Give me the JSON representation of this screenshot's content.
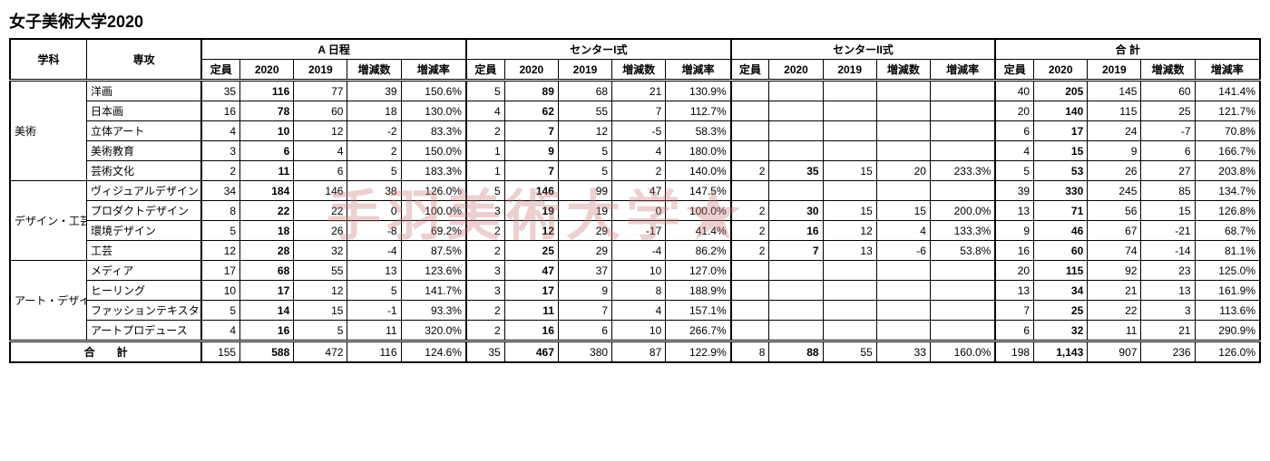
{
  "title": "女子美術大学2020",
  "watermark": "手羽美術大学★",
  "headers": {
    "dept": "学科",
    "major": "専攻",
    "groups": [
      "A 日程",
      "センターI式",
      "センターII式",
      "合 計"
    ],
    "cols": [
      "定員",
      "2020",
      "2019",
      "増減数",
      "増減率"
    ]
  },
  "departments": [
    {
      "name": "美術",
      "majors": [
        {
          "name": "洋画",
          "a": [
            "35",
            "116",
            "77",
            "39",
            "150.6%"
          ],
          "c1": [
            "5",
            "89",
            "68",
            "21",
            "130.9%"
          ],
          "c2": [
            "",
            "",
            "",
            "",
            ""
          ],
          "t": [
            "40",
            "205",
            "145",
            "60",
            "141.4%"
          ]
        },
        {
          "name": "日本画",
          "a": [
            "16",
            "78",
            "60",
            "18",
            "130.0%"
          ],
          "c1": [
            "4",
            "62",
            "55",
            "7",
            "112.7%"
          ],
          "c2": [
            "",
            "",
            "",
            "",
            ""
          ],
          "t": [
            "20",
            "140",
            "115",
            "25",
            "121.7%"
          ]
        },
        {
          "name": "立体アート",
          "a": [
            "4",
            "10",
            "12",
            "-2",
            "83.3%"
          ],
          "c1": [
            "2",
            "7",
            "12",
            "-5",
            "58.3%"
          ],
          "c2": [
            "",
            "",
            "",
            "",
            ""
          ],
          "t": [
            "6",
            "17",
            "24",
            "-7",
            "70.8%"
          ]
        },
        {
          "name": "美術教育",
          "a": [
            "3",
            "6",
            "4",
            "2",
            "150.0%"
          ],
          "c1": [
            "1",
            "9",
            "5",
            "4",
            "180.0%"
          ],
          "c2": [
            "",
            "",
            "",
            "",
            ""
          ],
          "t": [
            "4",
            "15",
            "9",
            "6",
            "166.7%"
          ]
        },
        {
          "name": "芸術文化",
          "a": [
            "2",
            "11",
            "6",
            "5",
            "183.3%"
          ],
          "c1": [
            "1",
            "7",
            "5",
            "2",
            "140.0%"
          ],
          "c2": [
            "2",
            "35",
            "15",
            "20",
            "233.3%"
          ],
          "t": [
            "5",
            "53",
            "26",
            "27",
            "203.8%"
          ]
        }
      ]
    },
    {
      "name": "デザイン・工芸",
      "majors": [
        {
          "name": "ヴィジュアルデザイン",
          "a": [
            "34",
            "184",
            "146",
            "38",
            "126.0%"
          ],
          "c1": [
            "5",
            "146",
            "99",
            "47",
            "147.5%"
          ],
          "c2": [
            "",
            "",
            "",
            "",
            ""
          ],
          "t": [
            "39",
            "330",
            "245",
            "85",
            "134.7%"
          ]
        },
        {
          "name": "プロダクトデザイン",
          "a": [
            "8",
            "22",
            "22",
            "0",
            "100.0%"
          ],
          "c1": [
            "3",
            "19",
            "19",
            "0",
            "100.0%"
          ],
          "c2": [
            "2",
            "30",
            "15",
            "15",
            "200.0%"
          ],
          "t": [
            "13",
            "71",
            "56",
            "15",
            "126.8%"
          ]
        },
        {
          "name": "環境デザイン",
          "a": [
            "5",
            "18",
            "26",
            "-8",
            "69.2%"
          ],
          "c1": [
            "2",
            "12",
            "29",
            "-17",
            "41.4%"
          ],
          "c2": [
            "2",
            "16",
            "12",
            "4",
            "133.3%"
          ],
          "t": [
            "9",
            "46",
            "67",
            "-21",
            "68.7%"
          ]
        },
        {
          "name": "工芸",
          "a": [
            "12",
            "28",
            "32",
            "-4",
            "87.5%"
          ],
          "c1": [
            "2",
            "25",
            "29",
            "-4",
            "86.2%"
          ],
          "c2": [
            "2",
            "7",
            "13",
            "-6",
            "53.8%"
          ],
          "t": [
            "16",
            "60",
            "74",
            "-14",
            "81.1%"
          ]
        }
      ]
    },
    {
      "name": "アート・デザイン表現",
      "majors": [
        {
          "name": "メディア",
          "a": [
            "17",
            "68",
            "55",
            "13",
            "123.6%"
          ],
          "c1": [
            "3",
            "47",
            "37",
            "10",
            "127.0%"
          ],
          "c2": [
            "",
            "",
            "",
            "",
            ""
          ],
          "t": [
            "20",
            "115",
            "92",
            "23",
            "125.0%"
          ]
        },
        {
          "name": "ヒーリング",
          "a": [
            "10",
            "17",
            "12",
            "5",
            "141.7%"
          ],
          "c1": [
            "3",
            "17",
            "9",
            "8",
            "188.9%"
          ],
          "c2": [
            "",
            "",
            "",
            "",
            ""
          ],
          "t": [
            "13",
            "34",
            "21",
            "13",
            "161.9%"
          ]
        },
        {
          "name": "ファッションテキスタイル",
          "a": [
            "5",
            "14",
            "15",
            "-1",
            "93.3%"
          ],
          "c1": [
            "2",
            "11",
            "7",
            "4",
            "157.1%"
          ],
          "c2": [
            "",
            "",
            "",
            "",
            ""
          ],
          "t": [
            "7",
            "25",
            "22",
            "3",
            "113.6%"
          ]
        },
        {
          "name": "アートプロデュース",
          "a": [
            "4",
            "16",
            "5",
            "11",
            "320.0%"
          ],
          "c1": [
            "2",
            "16",
            "6",
            "10",
            "266.7%"
          ],
          "c2": [
            "",
            "",
            "",
            "",
            ""
          ],
          "t": [
            "6",
            "32",
            "11",
            "21",
            "290.9%"
          ]
        }
      ]
    }
  ],
  "total": {
    "label": "合　　計",
    "a": [
      "155",
      "588",
      "472",
      "116",
      "124.6%"
    ],
    "c1": [
      "35",
      "467",
      "380",
      "87",
      "122.9%"
    ],
    "c2": [
      "8",
      "88",
      "55",
      "33",
      "160.0%"
    ],
    "t": [
      "198",
      "1,143",
      "907",
      "236",
      "126.0%"
    ]
  }
}
